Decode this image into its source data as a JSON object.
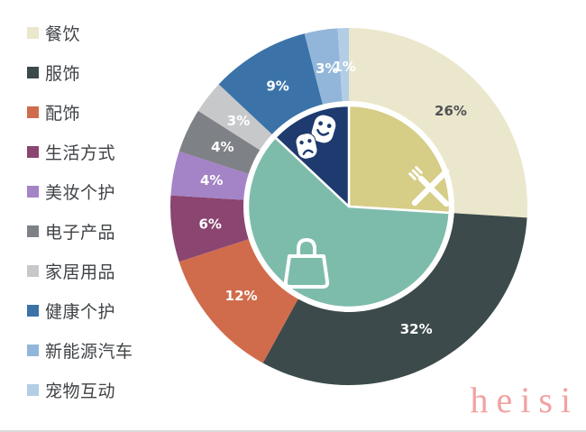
{
  "watermark": {
    "text": "heisi",
    "color": "#f2a2a2"
  },
  "chart_data": {
    "type": "pie",
    "variant": "pie-of-pie (outer detail ring + inner summary pie)",
    "legend_position": "left",
    "start_angle": 0,
    "direction": "clockwise",
    "outer_series": [
      {
        "label": "餐饮",
        "value": 26,
        "pct_label": "26%",
        "color": "#ebe7cc",
        "label_color": "#4f5255"
      },
      {
        "label": "服饰",
        "value": 32,
        "pct_label": "32%",
        "color": "#3c4a4b",
        "label_color": "#ffffff"
      },
      {
        "label": "配饰",
        "value": 12,
        "pct_label": "12%",
        "color": "#d06c4c",
        "label_color": "#ffffff"
      },
      {
        "label": "生活方式",
        "value": 6,
        "pct_label": "6%",
        "color": "#8a4570",
        "label_color": "#ffffff"
      },
      {
        "label": "美妆个护",
        "value": 4,
        "pct_label": "4%",
        "color": "#a483c6",
        "label_color": "#ffffff"
      },
      {
        "label": "电子产品",
        "value": 4,
        "pct_label": "4%",
        "color": "#7e8186",
        "label_color": "#ffffff"
      },
      {
        "label": "家居用品",
        "value": 3,
        "pct_label": "3%",
        "color": "#c7c8ca",
        "label_color": "#ffffff"
      },
      {
        "label": "健康个护",
        "value": 9,
        "pct_label": "9%",
        "color": "#3b73a8",
        "label_color": "#ffffff"
      },
      {
        "label": "新能源汽车",
        "value": 3,
        "pct_label": "3%",
        "color": "#92b6d9",
        "label_color": "#ffffff"
      },
      {
        "label": "宠物互动",
        "value": 1,
        "pct_label": "1%",
        "color": "#b3cde6",
        "label_color": "#ffffff"
      }
    ],
    "inner_series": [
      {
        "icon": "fork-knife-icon",
        "value": 26,
        "color": "#d6cd86"
      },
      {
        "icon": "shopping-bag-icon",
        "value": 61,
        "color": "#7dbcab"
      },
      {
        "icon": "theater-masks-icon",
        "value": 13,
        "color": "#1e3a6e"
      }
    ]
  }
}
